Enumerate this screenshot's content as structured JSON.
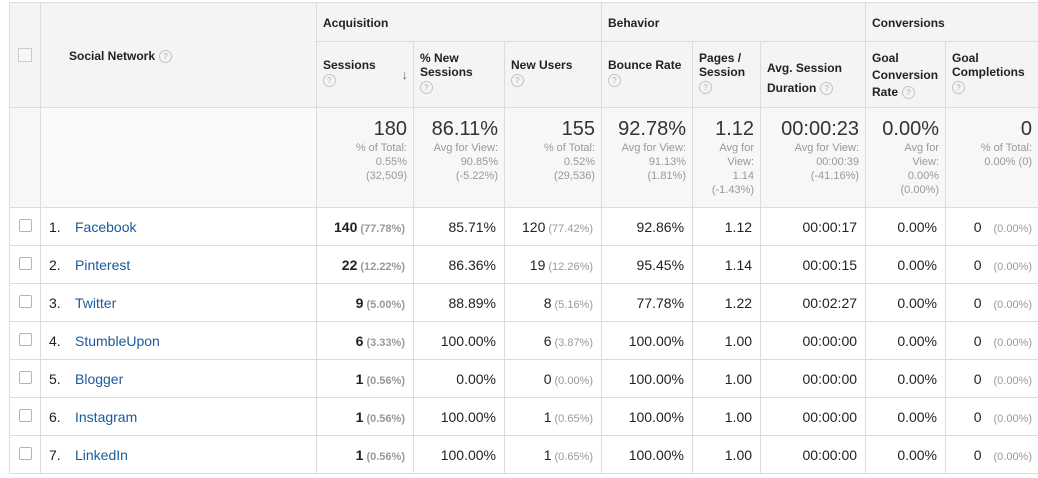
{
  "groups": {
    "acquisition": "Acquisition",
    "behavior": "Behavior",
    "conversions": "Conversions"
  },
  "columns": {
    "social_network": "Social Network",
    "sessions": "Sessions",
    "pct_new_sessions": "% New Sessions",
    "new_users": "New Users",
    "bounce_rate": "Bounce Rate",
    "pages_session": "Pages / Session",
    "avg_session_duration": "Avg. Session Duration",
    "goal_conv_rate": "Goal Conversion Rate",
    "goal_completions": "Goal Completions"
  },
  "totals": {
    "sessions": {
      "value": "180",
      "l1": "% of Total:",
      "l2": "0.55%",
      "l3": "(32,509)"
    },
    "pct_new": {
      "value": "86.11%",
      "l1": "Avg for View:",
      "l2": "90.85%",
      "l3": "(-5.22%)"
    },
    "new_users": {
      "value": "155",
      "l1": "% of Total:",
      "l2": "0.52%",
      "l3": "(29,536)"
    },
    "bounce": {
      "value": "92.78%",
      "l1": "Avg for View:",
      "l2": "91.13%",
      "l3": "(1.81%)"
    },
    "pages": {
      "value": "1.12",
      "l1": "Avg for",
      "l2": "View:",
      "l3": "1.14",
      "l4": "(-1.43%)"
    },
    "duration": {
      "value": "00:00:23",
      "l1": "Avg for View:",
      "l2": "00:00:39",
      "l3": "(-41.16%)"
    },
    "conv_rate": {
      "value": "0.00%",
      "l1": "Avg for",
      "l2": "View:",
      "l3": "0.00%",
      "l4": "(0.00%)"
    },
    "completions": {
      "value": "0",
      "l1": "% of Total:",
      "l2": "0.00% (0)"
    }
  },
  "rows": [
    {
      "idx": "1.",
      "name": "Facebook",
      "sessions": "140",
      "sessions_pct": "(77.78%)",
      "pct_new": "85.71%",
      "new_users": "120",
      "new_users_pct": "(77.42%)",
      "bounce": "92.86%",
      "pages": "1.12",
      "duration": "00:00:17",
      "conv": "0.00%",
      "comp": "0",
      "comp_pct": "(0.00%)"
    },
    {
      "idx": "2.",
      "name": "Pinterest",
      "sessions": "22",
      "sessions_pct": "(12.22%)",
      "pct_new": "86.36%",
      "new_users": "19",
      "new_users_pct": "(12.26%)",
      "bounce": "95.45%",
      "pages": "1.14",
      "duration": "00:00:15",
      "conv": "0.00%",
      "comp": "0",
      "comp_pct": "(0.00%)"
    },
    {
      "idx": "3.",
      "name": "Twitter",
      "sessions": "9",
      "sessions_pct": "(5.00%)",
      "pct_new": "88.89%",
      "new_users": "8",
      "new_users_pct": "(5.16%)",
      "bounce": "77.78%",
      "pages": "1.22",
      "duration": "00:02:27",
      "conv": "0.00%",
      "comp": "0",
      "comp_pct": "(0.00%)"
    },
    {
      "idx": "4.",
      "name": "StumbleUpon",
      "sessions": "6",
      "sessions_pct": "(3.33%)",
      "pct_new": "100.00%",
      "new_users": "6",
      "new_users_pct": "(3.87%)",
      "bounce": "100.00%",
      "pages": "1.00",
      "duration": "00:00:00",
      "conv": "0.00%",
      "comp": "0",
      "comp_pct": "(0.00%)"
    },
    {
      "idx": "5.",
      "name": "Blogger",
      "sessions": "1",
      "sessions_pct": "(0.56%)",
      "pct_new": "0.00%",
      "new_users": "0",
      "new_users_pct": "(0.00%)",
      "bounce": "100.00%",
      "pages": "1.00",
      "duration": "00:00:00",
      "conv": "0.00%",
      "comp": "0",
      "comp_pct": "(0.00%)"
    },
    {
      "idx": "6.",
      "name": "Instagram",
      "sessions": "1",
      "sessions_pct": "(0.56%)",
      "pct_new": "100.00%",
      "new_users": "1",
      "new_users_pct": "(0.65%)",
      "bounce": "100.00%",
      "pages": "1.00",
      "duration": "00:00:00",
      "conv": "0.00%",
      "comp": "0",
      "comp_pct": "(0.00%)"
    },
    {
      "idx": "7.",
      "name": "LinkedIn",
      "sessions": "1",
      "sessions_pct": "(0.56%)",
      "pct_new": "100.00%",
      "new_users": "1",
      "new_users_pct": "(0.65%)",
      "bounce": "100.00%",
      "pages": "1.00",
      "duration": "00:00:00",
      "conv": "0.00%",
      "comp": "0",
      "comp_pct": "(0.00%)"
    }
  ],
  "icons": {
    "help": "question-mark-icon",
    "sort": "sort-descending-arrow-icon"
  }
}
